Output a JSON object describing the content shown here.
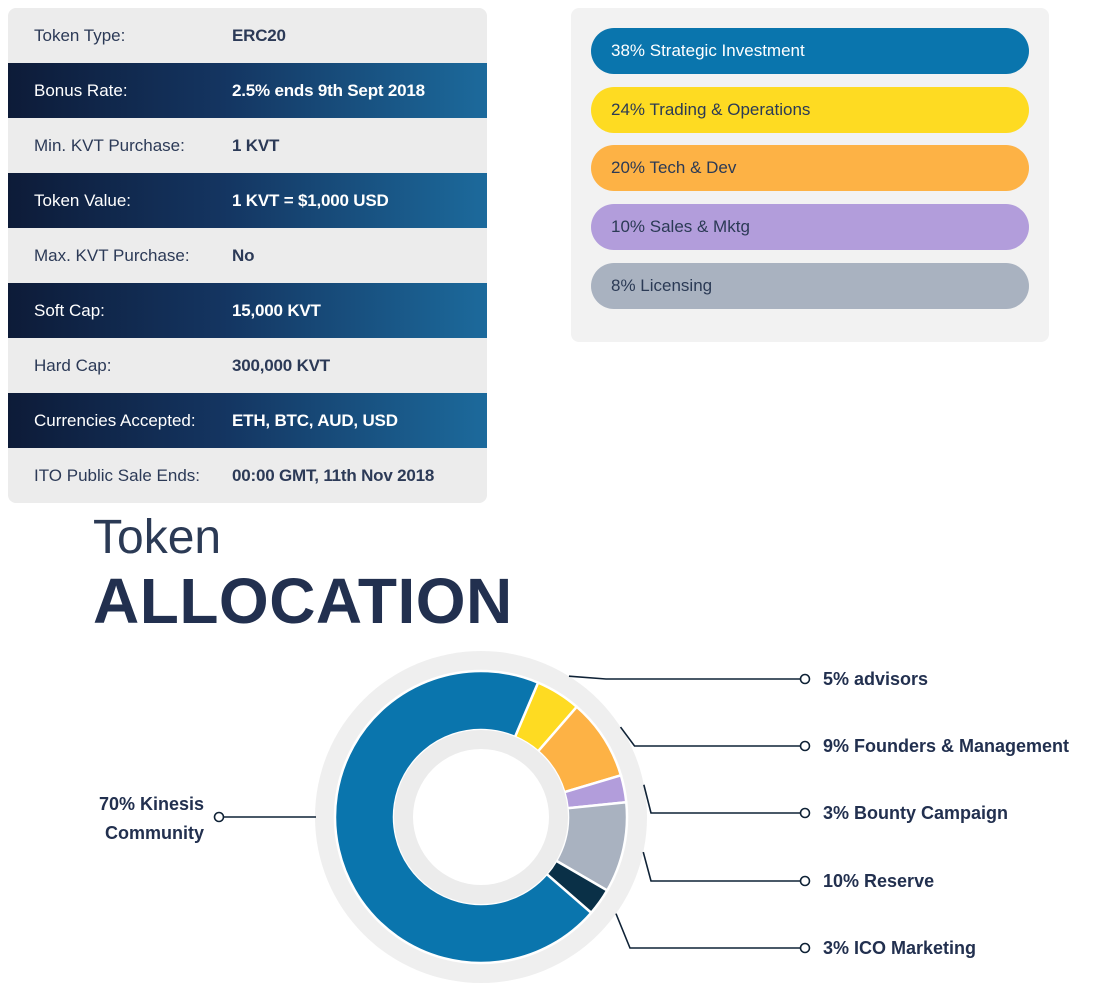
{
  "details": {
    "rows": [
      {
        "label": "Token Type:",
        "value": "ERC20",
        "style": "light"
      },
      {
        "label": "Bonus Rate:",
        "value": "2.5% ends 9th Sept 2018",
        "style": "dark"
      },
      {
        "label": "Min. KVT Purchase:",
        "value": "1 KVT",
        "style": "light"
      },
      {
        "label": "Token Value:",
        "value": "1 KVT = $1,000 USD",
        "style": "dark"
      },
      {
        "label": "Max. KVT Purchase:",
        "value": "No",
        "style": "light"
      },
      {
        "label": "Soft Cap:",
        "value": "15,000 KVT",
        "style": "dark"
      },
      {
        "label": "Hard Cap:",
        "value": "300,000 KVT",
        "style": "light"
      },
      {
        "label": "Currencies Accepted:",
        "value": "ETH, BTC, AUD, USD",
        "style": "dark"
      },
      {
        "label": "ITO Public Sale Ends:",
        "value": "00:00 GMT, 11th Nov 2018",
        "style": "light"
      }
    ]
  },
  "funds": {
    "items": [
      {
        "label": "38% Strategic Investment",
        "color": "#0a75ad",
        "text_color": "#ffffff"
      },
      {
        "label": "24% Trading & Operations",
        "color": "#fedb22",
        "text_color": "#2b3a55"
      },
      {
        "label": "20% Tech & Dev",
        "color": "#fdb245",
        "text_color": "#2b3a55"
      },
      {
        "label": "10% Sales & Mktg",
        "color": "#b29ddb",
        "text_color": "#2b3a55"
      },
      {
        "label": "8% Licensing",
        "color": "#a9b2c0",
        "text_color": "#2b3a55"
      }
    ]
  },
  "heading": {
    "light": "Token",
    "bold": "ALLOCATION"
  },
  "chart_data": {
    "type": "pie",
    "title": "Token ALLOCATION",
    "slices": [
      {
        "name": "advisors",
        "value": 5,
        "label": "5% advisors",
        "color": "#fedb22",
        "label_side": "right"
      },
      {
        "name": "Founders & Management",
        "value": 9,
        "label": "9% Founders & Management",
        "color": "#fdb245",
        "label_side": "right"
      },
      {
        "name": "Bounty Campaign",
        "value": 3,
        "label": "3% Bounty Campaign",
        "color": "#b29ddb",
        "label_side": "right"
      },
      {
        "name": "Reserve",
        "value": 10,
        "label": "10% Reserve",
        "color": "#a9b2c0",
        "label_side": "right"
      },
      {
        "name": "ICO Marketing",
        "value": 3,
        "label": "3% ICO Marketing",
        "color": "#0a3047",
        "label_side": "right"
      },
      {
        "name": "Kinesis Community",
        "value": 70,
        "label_lines": [
          "70% Kinesis",
          "Community"
        ],
        "color": "#0a75ad",
        "label_side": "left"
      }
    ],
    "colors": {
      "outer_ring": "#efefef",
      "inner_ring": "#ececec",
      "leader_line": "#0f2236"
    }
  }
}
